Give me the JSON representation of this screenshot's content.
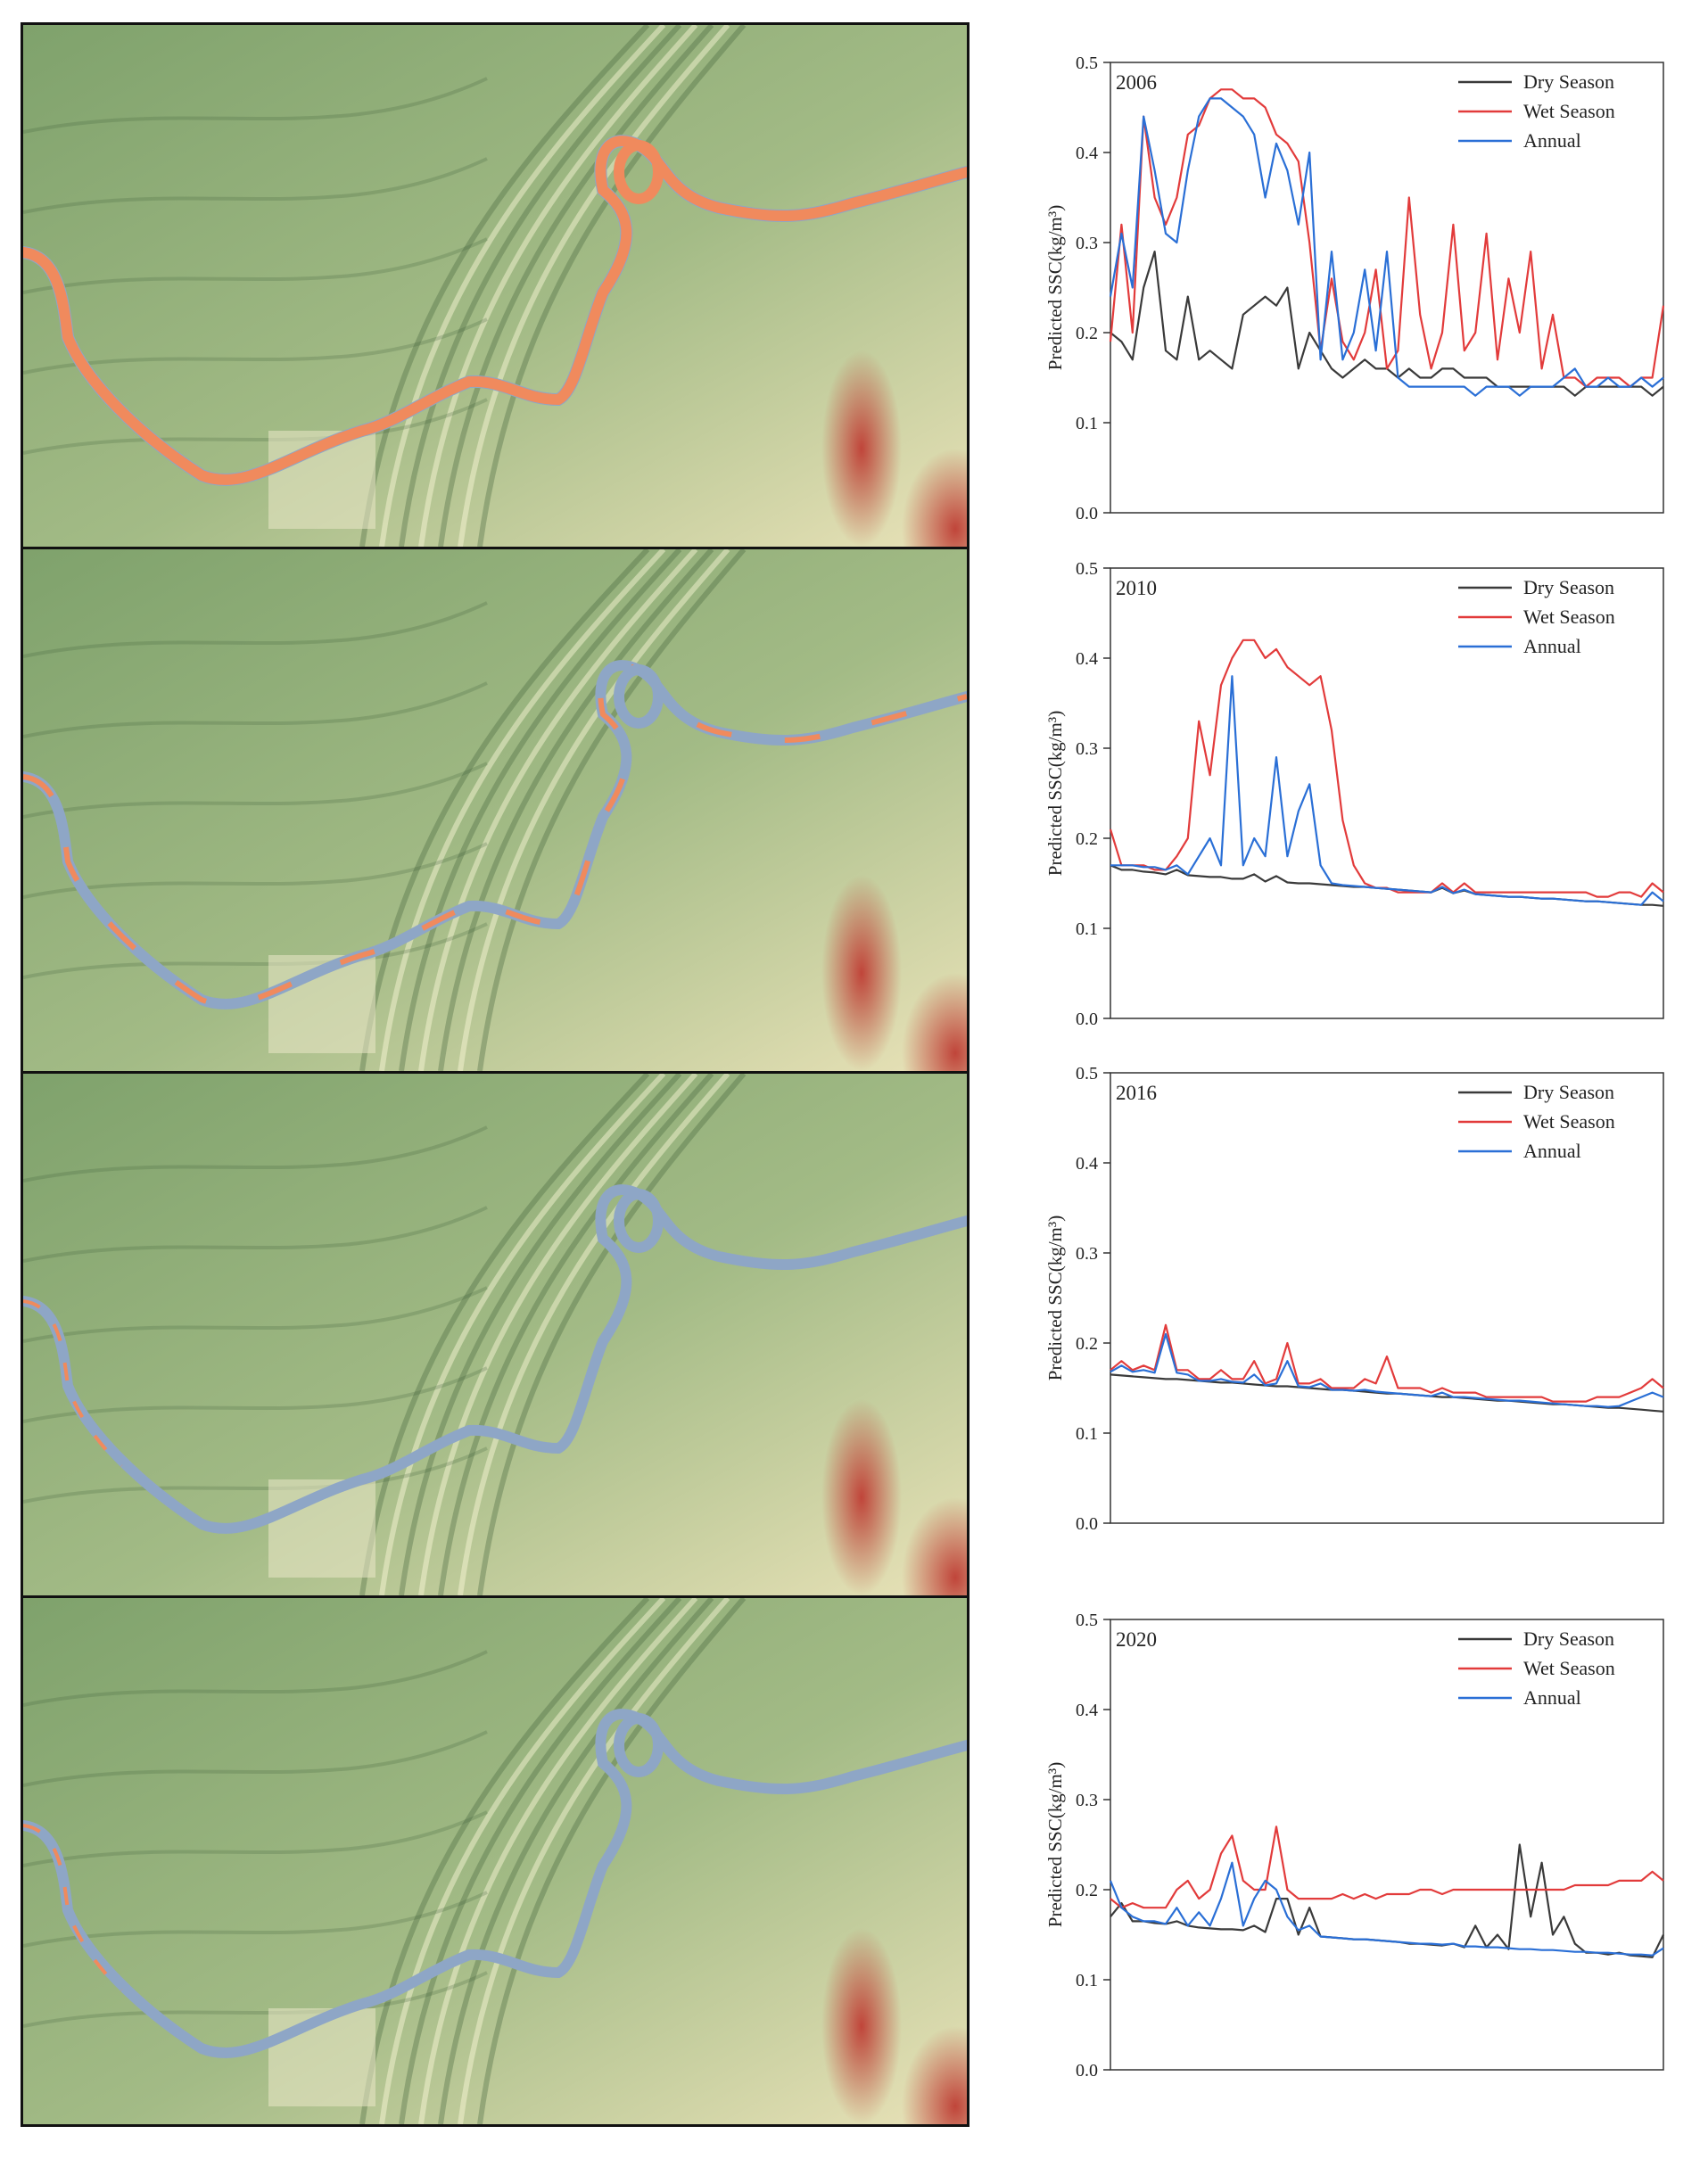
{
  "colors": {
    "dry": "#3a3a3a",
    "wet": "#e23b3b",
    "annual": "#2a6fd6",
    "terrain_low": "#7fa26c",
    "terrain_high": "#e9e2b8",
    "terrain_peak": "#c0453a",
    "river_high_ssc": "#f08a5d",
    "river_low_ssc": "#8ea6c6"
  },
  "legend": [
    "Dry Season",
    "Wet Season",
    "Annual"
  ],
  "maps": [
    {
      "year": "2006",
      "river_state": "high"
    },
    {
      "year": "2010",
      "river_state": "mixed"
    },
    {
      "year": "2016",
      "river_state": "low"
    },
    {
      "year": "2020",
      "river_state": "low"
    }
  ],
  "chart_data": [
    {
      "type": "line",
      "title": "2006",
      "ylabel": "Predicted SSC(kg/m³)",
      "ylim": [
        0,
        0.5
      ],
      "yticks": [
        "0.0",
        "0.1",
        "0.2",
        "0.3",
        "0.4",
        "0.5"
      ],
      "grid": false,
      "legend_position": "top-right",
      "x": [
        0,
        2,
        4,
        6,
        8,
        10,
        12,
        14,
        16,
        18,
        20,
        22,
        24,
        26,
        28,
        30,
        32,
        34,
        36,
        38,
        40,
        42,
        44,
        46,
        48,
        50,
        52,
        54,
        56,
        58,
        60,
        62,
        64,
        66,
        68,
        70,
        72,
        74,
        76,
        78,
        80,
        82,
        84,
        86,
        88,
        90,
        92,
        94,
        96,
        98,
        100
      ],
      "series": [
        {
          "name": "Dry Season",
          "values": [
            0.2,
            0.19,
            0.17,
            0.25,
            0.29,
            0.18,
            0.17,
            0.24,
            0.17,
            0.18,
            0.17,
            0.16,
            0.22,
            0.23,
            0.24,
            0.23,
            0.25,
            0.16,
            0.2,
            0.18,
            0.16,
            0.15,
            0.16,
            0.17,
            0.16,
            0.16,
            0.15,
            0.16,
            0.15,
            0.15,
            0.16,
            0.16,
            0.15,
            0.15,
            0.15,
            0.14,
            0.14,
            0.14,
            0.14,
            0.14,
            0.14,
            0.14,
            0.13,
            0.14,
            0.14,
            0.14,
            0.14,
            0.14,
            0.14,
            0.13,
            0.14
          ]
        },
        {
          "name": "Wet Season",
          "values": [
            0.19,
            0.32,
            0.2,
            0.44,
            0.35,
            0.32,
            0.35,
            0.42,
            0.43,
            0.46,
            0.47,
            0.47,
            0.46,
            0.46,
            0.45,
            0.42,
            0.41,
            0.39,
            0.3,
            0.18,
            0.26,
            0.19,
            0.17,
            0.2,
            0.27,
            0.16,
            0.18,
            0.35,
            0.22,
            0.16,
            0.2,
            0.32,
            0.18,
            0.2,
            0.31,
            0.17,
            0.26,
            0.2,
            0.29,
            0.16,
            0.22,
            0.15,
            0.15,
            0.14,
            0.15,
            0.15,
            0.15,
            0.14,
            0.15,
            0.15,
            0.23
          ]
        },
        {
          "name": "Annual",
          "values": [
            0.24,
            0.31,
            0.25,
            0.44,
            0.38,
            0.31,
            0.3,
            0.38,
            0.44,
            0.46,
            0.46,
            0.45,
            0.44,
            0.42,
            0.35,
            0.41,
            0.38,
            0.32,
            0.4,
            0.17,
            0.29,
            0.17,
            0.2,
            0.27,
            0.18,
            0.29,
            0.15,
            0.14,
            0.14,
            0.14,
            0.14,
            0.14,
            0.14,
            0.13,
            0.14,
            0.14,
            0.14,
            0.13,
            0.14,
            0.14,
            0.14,
            0.15,
            0.16,
            0.14,
            0.14,
            0.15,
            0.14,
            0.14,
            0.15,
            0.14,
            0.15
          ]
        }
      ]
    },
    {
      "type": "line",
      "title": "2010",
      "ylabel": "Predicted SSC(kg/m³)",
      "ylim": [
        0,
        0.5
      ],
      "yticks": [
        "0.0",
        "0.1",
        "0.2",
        "0.3",
        "0.4",
        "0.5"
      ],
      "grid": false,
      "legend_position": "top-right",
      "x": [
        0,
        2,
        4,
        6,
        8,
        10,
        12,
        14,
        16,
        18,
        20,
        22,
        24,
        26,
        28,
        30,
        32,
        34,
        36,
        38,
        40,
        42,
        44,
        46,
        48,
        50,
        52,
        54,
        56,
        58,
        60,
        62,
        64,
        66,
        68,
        70,
        72,
        74,
        76,
        78,
        80,
        82,
        84,
        86,
        88,
        90,
        92,
        94,
        96,
        98,
        100
      ],
      "series": [
        {
          "name": "Dry Season",
          "values": [
            0.17,
            0.165,
            0.165,
            0.163,
            0.162,
            0.16,
            0.165,
            0.159,
            0.158,
            0.157,
            0.157,
            0.155,
            0.155,
            0.16,
            0.152,
            0.158,
            0.151,
            0.15,
            0.15,
            0.149,
            0.148,
            0.147,
            0.146,
            0.146,
            0.145,
            0.144,
            0.143,
            0.142,
            0.141,
            0.14,
            0.145,
            0.139,
            0.142,
            0.138,
            0.137,
            0.136,
            0.135,
            0.135,
            0.134,
            0.133,
            0.133,
            0.132,
            0.131,
            0.13,
            0.13,
            0.129,
            0.128,
            0.127,
            0.126,
            0.126,
            0.125
          ]
        },
        {
          "name": "Wet Season",
          "values": [
            0.21,
            0.17,
            0.17,
            0.17,
            0.165,
            0.165,
            0.18,
            0.2,
            0.33,
            0.27,
            0.37,
            0.4,
            0.42,
            0.42,
            0.4,
            0.41,
            0.39,
            0.38,
            0.37,
            0.38,
            0.32,
            0.22,
            0.17,
            0.15,
            0.145,
            0.145,
            0.14,
            0.14,
            0.14,
            0.14,
            0.15,
            0.14,
            0.15,
            0.14,
            0.14,
            0.14,
            0.14,
            0.14,
            0.14,
            0.14,
            0.14,
            0.14,
            0.14,
            0.14,
            0.135,
            0.135,
            0.14,
            0.14,
            0.135,
            0.15,
            0.14
          ]
        },
        {
          "name": "Annual",
          "values": [
            0.17,
            0.17,
            0.17,
            0.168,
            0.168,
            0.165,
            0.17,
            0.16,
            0.18,
            0.2,
            0.17,
            0.38,
            0.17,
            0.2,
            0.18,
            0.29,
            0.18,
            0.23,
            0.26,
            0.17,
            0.15,
            0.148,
            0.147,
            0.146,
            0.145,
            0.144,
            0.143,
            0.142,
            0.141,
            0.14,
            0.146,
            0.139,
            0.143,
            0.138,
            0.137,
            0.136,
            0.135,
            0.135,
            0.134,
            0.133,
            0.133,
            0.132,
            0.131,
            0.13,
            0.13,
            0.129,
            0.128,
            0.127,
            0.126,
            0.14,
            0.13
          ]
        }
      ]
    },
    {
      "type": "line",
      "title": "2016",
      "ylabel": "Predicted SSC(kg/m³)",
      "ylim": [
        0,
        0.5
      ],
      "yticks": [
        "0.0",
        "0.1",
        "0.2",
        "0.3",
        "0.4",
        "0.5"
      ],
      "grid": false,
      "legend_position": "top-right",
      "x": [
        0,
        2,
        4,
        6,
        8,
        10,
        12,
        14,
        16,
        18,
        20,
        22,
        24,
        26,
        28,
        30,
        32,
        34,
        36,
        38,
        40,
        42,
        44,
        46,
        48,
        50,
        52,
        54,
        56,
        58,
        60,
        62,
        64,
        66,
        68,
        70,
        72,
        74,
        76,
        78,
        80,
        82,
        84,
        86,
        88,
        90,
        92,
        94,
        96,
        98,
        100
      ],
      "series": [
        {
          "name": "Dry Season",
          "values": [
            0.165,
            0.164,
            0.163,
            0.162,
            0.161,
            0.16,
            0.16,
            0.159,
            0.158,
            0.157,
            0.156,
            0.156,
            0.155,
            0.154,
            0.153,
            0.152,
            0.152,
            0.151,
            0.15,
            0.149,
            0.148,
            0.148,
            0.147,
            0.146,
            0.145,
            0.144,
            0.144,
            0.143,
            0.142,
            0.141,
            0.14,
            0.14,
            0.139,
            0.138,
            0.137,
            0.136,
            0.136,
            0.135,
            0.134,
            0.133,
            0.132,
            0.132,
            0.131,
            0.13,
            0.129,
            0.128,
            0.128,
            0.127,
            0.126,
            0.125,
            0.124
          ]
        },
        {
          "name": "Wet Season",
          "values": [
            0.17,
            0.18,
            0.17,
            0.175,
            0.17,
            0.22,
            0.17,
            0.17,
            0.16,
            0.16,
            0.17,
            0.16,
            0.16,
            0.18,
            0.155,
            0.16,
            0.2,
            0.155,
            0.155,
            0.16,
            0.15,
            0.15,
            0.15,
            0.16,
            0.155,
            0.185,
            0.15,
            0.15,
            0.15,
            0.145,
            0.15,
            0.145,
            0.145,
            0.145,
            0.14,
            0.14,
            0.14,
            0.14,
            0.14,
            0.14,
            0.135,
            0.135,
            0.135,
            0.135,
            0.14,
            0.14,
            0.14,
            0.145,
            0.15,
            0.16,
            0.15
          ]
        },
        {
          "name": "Annual",
          "values": [
            0.168,
            0.175,
            0.168,
            0.17,
            0.167,
            0.21,
            0.167,
            0.165,
            0.158,
            0.158,
            0.16,
            0.157,
            0.156,
            0.165,
            0.153,
            0.155,
            0.18,
            0.152,
            0.151,
            0.155,
            0.148,
            0.148,
            0.147,
            0.148,
            0.146,
            0.145,
            0.144,
            0.143,
            0.142,
            0.141,
            0.145,
            0.14,
            0.14,
            0.139,
            0.138,
            0.137,
            0.136,
            0.136,
            0.135,
            0.134,
            0.133,
            0.132,
            0.131,
            0.13,
            0.13,
            0.129,
            0.13,
            0.135,
            0.14,
            0.145,
            0.14
          ]
        }
      ]
    },
    {
      "type": "line",
      "title": "2020",
      "ylabel": "Predicted SSC(kg/m³)",
      "ylim": [
        0,
        0.5
      ],
      "yticks": [
        "0.0",
        "0.1",
        "0.2",
        "0.3",
        "0.4",
        "0.5"
      ],
      "grid": false,
      "legend_position": "top-right",
      "x": [
        0,
        2,
        4,
        6,
        8,
        10,
        12,
        14,
        16,
        18,
        20,
        22,
        24,
        26,
        28,
        30,
        32,
        34,
        36,
        38,
        40,
        42,
        44,
        46,
        48,
        50,
        52,
        54,
        56,
        58,
        60,
        62,
        64,
        66,
        68,
        70,
        72,
        74,
        76,
        78,
        80,
        82,
        84,
        86,
        88,
        90,
        92,
        94,
        96,
        98,
        100
      ],
      "series": [
        {
          "name": "Dry Season",
          "values": [
            0.17,
            0.185,
            0.165,
            0.165,
            0.163,
            0.162,
            0.165,
            0.16,
            0.158,
            0.157,
            0.156,
            0.156,
            0.155,
            0.16,
            0.153,
            0.19,
            0.19,
            0.15,
            0.18,
            0.148,
            0.147,
            0.146,
            0.145,
            0.145,
            0.144,
            0.143,
            0.142,
            0.14,
            0.14,
            0.139,
            0.138,
            0.14,
            0.136,
            0.16,
            0.136,
            0.15,
            0.134,
            0.25,
            0.17,
            0.23,
            0.15,
            0.17,
            0.14,
            0.13,
            0.13,
            0.128,
            0.13,
            0.127,
            0.126,
            0.125,
            0.15
          ]
        },
        {
          "name": "Wet Season",
          "values": [
            0.19,
            0.18,
            0.185,
            0.18,
            0.18,
            0.18,
            0.2,
            0.21,
            0.19,
            0.2,
            0.24,
            0.26,
            0.21,
            0.2,
            0.2,
            0.27,
            0.2,
            0.19,
            0.19,
            0.19,
            0.19,
            0.195,
            0.19,
            0.195,
            0.19,
            0.195,
            0.195,
            0.195,
            0.2,
            0.2,
            0.195,
            0.2,
            0.2,
            0.2,
            0.2,
            0.2,
            0.2,
            0.2,
            0.2,
            0.2,
            0.2,
            0.2,
            0.205,
            0.205,
            0.205,
            0.205,
            0.21,
            0.21,
            0.21,
            0.22,
            0.21
          ]
        },
        {
          "name": "Annual",
          "values": [
            0.21,
            0.18,
            0.17,
            0.165,
            0.165,
            0.162,
            0.18,
            0.16,
            0.175,
            0.16,
            0.19,
            0.23,
            0.16,
            0.19,
            0.21,
            0.2,
            0.17,
            0.155,
            0.16,
            0.148,
            0.147,
            0.146,
            0.145,
            0.145,
            0.144,
            0.143,
            0.142,
            0.141,
            0.14,
            0.14,
            0.139,
            0.14,
            0.137,
            0.137,
            0.136,
            0.136,
            0.135,
            0.134,
            0.134,
            0.133,
            0.133,
            0.132,
            0.131,
            0.131,
            0.13,
            0.13,
            0.129,
            0.128,
            0.128,
            0.127,
            0.135
          ]
        }
      ]
    }
  ]
}
